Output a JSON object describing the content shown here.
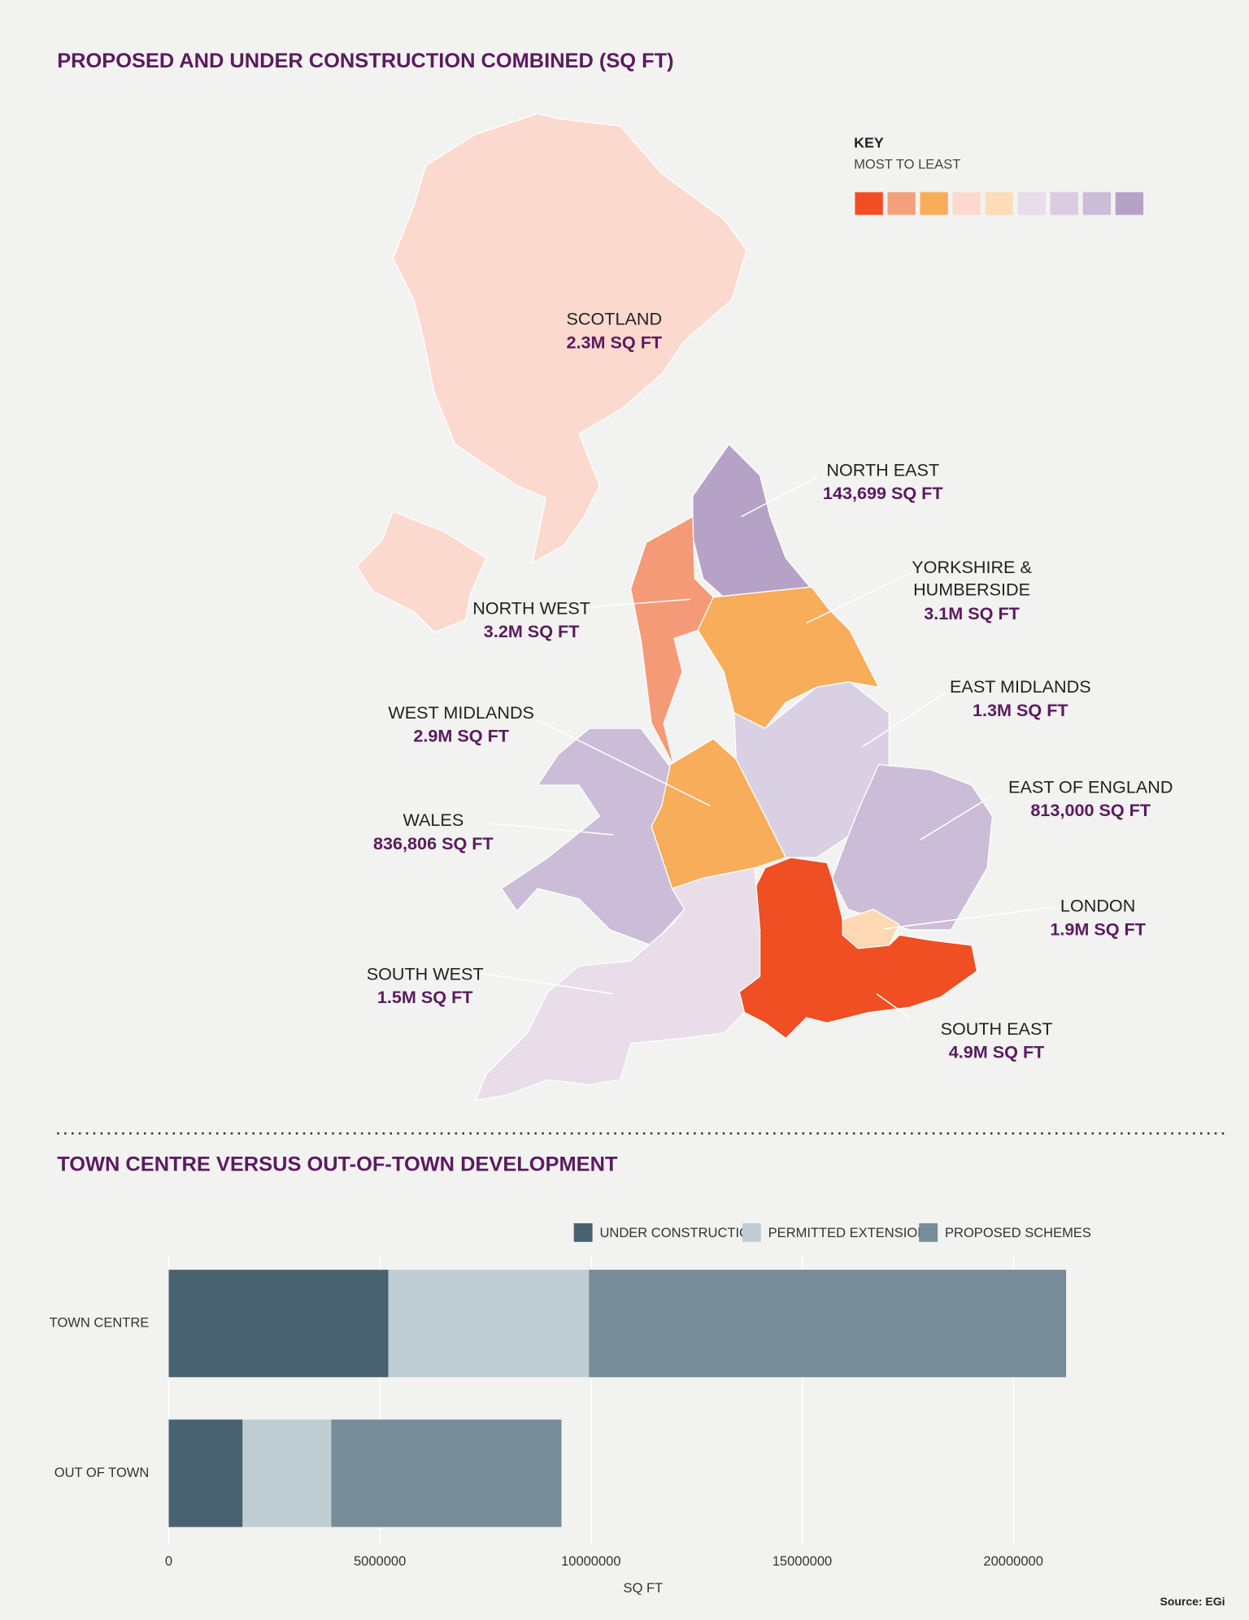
{
  "map": {
    "title": "PROPOSED AND UNDER CONSTRUCTION COMBINED (SQ FT)",
    "key_title": "KEY",
    "key_subtitle": "MOST TO LEAST",
    "key_colors": [
      "#f04e23",
      "#f5a07c",
      "#f8ad5a",
      "#fcd9ce",
      "#fddcb9",
      "#e8dde9",
      "#dacbe0",
      "#cbbcd7",
      "#b6a2c7"
    ],
    "regions": [
      {
        "name_lines": [
          "SCOTLAND"
        ],
        "value_label": "2.3M SQ FT",
        "color": "#fcd9ce"
      },
      {
        "name_lines": [
          "NORTH EAST"
        ],
        "value_label": "143,699 SQ FT",
        "color": "#b6a2c7"
      },
      {
        "name_lines": [
          "NORTH WEST"
        ],
        "value_label": "3.2M SQ FT",
        "color": "#f59a77"
      },
      {
        "name_lines": [
          "YORKSHIRE &",
          "HUMBERSIDE"
        ],
        "value_label": "3.1M SQ FT",
        "color": "#f8ad5a"
      },
      {
        "name_lines": [
          "EAST MIDLANDS"
        ],
        "value_label": "1.3M SQ FT",
        "color": "#dad0e3"
      },
      {
        "name_lines": [
          "WEST MIDLANDS"
        ],
        "value_label": "2.9M SQ FT",
        "color": "#f8ad5a"
      },
      {
        "name_lines": [
          "WALES"
        ],
        "value_label": "836,806 SQ FT",
        "color": "#cbbdd8"
      },
      {
        "name_lines": [
          "EAST OF ENGLAND"
        ],
        "value_label": "813,000 SQ FT",
        "color": "#cbbdd8"
      },
      {
        "name_lines": [
          "LONDON"
        ],
        "value_label": "1.9M SQ FT",
        "color": "#fdd8b3"
      },
      {
        "name_lines": [
          "SOUTH EAST"
        ],
        "value_label": "4.9M SQ FT",
        "color": "#f04e23"
      },
      {
        "name_lines": [
          "SOUTH WEST"
        ],
        "value_label": "1.5M SQ FT",
        "color": "#e8dde9"
      }
    ]
  },
  "chart_data": {
    "type": "stacked_barh",
    "title": "TOWN CENTRE VERSUS OUT-OF-TOWN DEVELOPMENT",
    "categories": [
      "TOWN CENTRE",
      "OUT OF TOWN"
    ],
    "series": [
      {
        "name": "UNDER CONSTRUCTION",
        "color": "#4a6270",
        "values": [
          5200000,
          1750000
        ]
      },
      {
        "name": "PERMITTED EXTENSIONS",
        "color": "#c0cdd3",
        "values": [
          4750000,
          2100000
        ]
      },
      {
        "name": "PROPOSED SCHEMES",
        "color": "#778c98",
        "values": [
          11300000,
          5450000
        ]
      }
    ],
    "xlim": [
      0,
      25000000
    ],
    "xticks": [
      0,
      5000000,
      10000000,
      15000000,
      20000000
    ],
    "x_label": "SQ FT",
    "grid": true
  },
  "source": "Source: EGi"
}
